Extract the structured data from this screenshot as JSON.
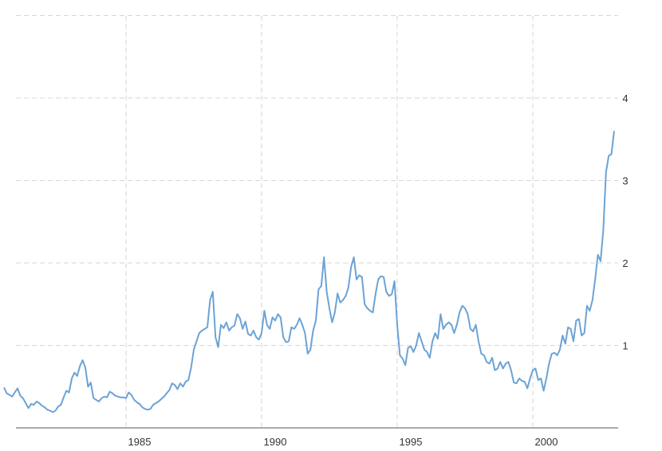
{
  "chart_data": {
    "type": "line",
    "x_label": "",
    "y_label": "",
    "xlim": [
      1980.5,
      2003.0
    ],
    "ylim": [
      0,
      5
    ],
    "x_ticks": [
      1985,
      1990,
      1995,
      2000
    ],
    "y_ticks": [
      1,
      2,
      3,
      4
    ],
    "grid": true,
    "color": "#6ca3d5",
    "series": [
      {
        "values": [
          [
            1980.5,
            0.49
          ],
          [
            1980.6,
            0.42
          ],
          [
            1980.8,
            0.38
          ],
          [
            1980.9,
            0.43
          ],
          [
            1981.0,
            0.48
          ],
          [
            1981.1,
            0.39
          ],
          [
            1981.2,
            0.36
          ],
          [
            1981.3,
            0.3
          ],
          [
            1981.4,
            0.24
          ],
          [
            1981.5,
            0.29
          ],
          [
            1981.6,
            0.28
          ],
          [
            1981.7,
            0.32
          ],
          [
            1981.8,
            0.3
          ],
          [
            1981.9,
            0.27
          ],
          [
            1982.0,
            0.25
          ],
          [
            1982.1,
            0.22
          ],
          [
            1982.2,
            0.21
          ],
          [
            1982.3,
            0.19
          ],
          [
            1982.4,
            0.21
          ],
          [
            1982.5,
            0.26
          ],
          [
            1982.6,
            0.28
          ],
          [
            1982.7,
            0.37
          ],
          [
            1982.8,
            0.45
          ],
          [
            1982.9,
            0.43
          ],
          [
            1983.0,
            0.6
          ],
          [
            1983.1,
            0.67
          ],
          [
            1983.2,
            0.63
          ],
          [
            1983.3,
            0.75
          ],
          [
            1983.4,
            0.82
          ],
          [
            1983.5,
            0.73
          ],
          [
            1983.6,
            0.5
          ],
          [
            1983.7,
            0.55
          ],
          [
            1983.8,
            0.36
          ],
          [
            1983.9,
            0.34
          ],
          [
            1984.0,
            0.32
          ],
          [
            1984.1,
            0.36
          ],
          [
            1984.2,
            0.38
          ],
          [
            1984.3,
            0.37
          ],
          [
            1984.4,
            0.44
          ],
          [
            1984.5,
            0.42
          ],
          [
            1984.6,
            0.39
          ],
          [
            1984.7,
            0.38
          ],
          [
            1984.8,
            0.37
          ],
          [
            1984.9,
            0.37
          ],
          [
            1985.0,
            0.36
          ],
          [
            1985.1,
            0.43
          ],
          [
            1985.2,
            0.4
          ],
          [
            1985.3,
            0.34
          ],
          [
            1985.4,
            0.31
          ],
          [
            1985.5,
            0.29
          ],
          [
            1985.6,
            0.25
          ],
          [
            1985.7,
            0.23
          ],
          [
            1985.8,
            0.22
          ],
          [
            1985.9,
            0.23
          ],
          [
            1986.0,
            0.28
          ],
          [
            1986.2,
            0.32
          ],
          [
            1986.3,
            0.35
          ],
          [
            1986.4,
            0.38
          ],
          [
            1986.5,
            0.42
          ],
          [
            1986.6,
            0.46
          ],
          [
            1986.7,
            0.54
          ],
          [
            1986.8,
            0.52
          ],
          [
            1986.9,
            0.47
          ],
          [
            1987.0,
            0.54
          ],
          [
            1987.1,
            0.5
          ],
          [
            1987.2,
            0.56
          ],
          [
            1987.3,
            0.58
          ],
          [
            1987.4,
            0.73
          ],
          [
            1987.5,
            0.95
          ],
          [
            1987.6,
            1.05
          ],
          [
            1987.7,
            1.15
          ],
          [
            1987.8,
            1.18
          ],
          [
            1987.9,
            1.2
          ],
          [
            1988.0,
            1.22
          ],
          [
            1988.1,
            1.55
          ],
          [
            1988.2,
            1.65
          ],
          [
            1988.3,
            1.1
          ],
          [
            1988.4,
            0.98
          ],
          [
            1988.5,
            1.25
          ],
          [
            1988.6,
            1.21
          ],
          [
            1988.7,
            1.28
          ],
          [
            1988.8,
            1.18
          ],
          [
            1988.9,
            1.22
          ],
          [
            1989.0,
            1.24
          ],
          [
            1989.1,
            1.38
          ],
          [
            1989.2,
            1.33
          ],
          [
            1989.3,
            1.2
          ],
          [
            1989.4,
            1.29
          ],
          [
            1989.5,
            1.14
          ],
          [
            1989.6,
            1.12
          ],
          [
            1989.7,
            1.18
          ],
          [
            1989.8,
            1.1
          ],
          [
            1989.9,
            1.07
          ],
          [
            1990.0,
            1.15
          ],
          [
            1990.1,
            1.42
          ],
          [
            1990.2,
            1.25
          ],
          [
            1990.3,
            1.2
          ],
          [
            1990.4,
            1.34
          ],
          [
            1990.5,
            1.3
          ],
          [
            1990.6,
            1.38
          ],
          [
            1990.7,
            1.34
          ],
          [
            1990.8,
            1.1
          ],
          [
            1990.9,
            1.04
          ],
          [
            1991.0,
            1.05
          ],
          [
            1991.1,
            1.22
          ],
          [
            1991.2,
            1.2
          ],
          [
            1991.3,
            1.25
          ],
          [
            1991.4,
            1.33
          ],
          [
            1991.5,
            1.25
          ],
          [
            1991.6,
            1.15
          ],
          [
            1991.7,
            0.9
          ],
          [
            1991.8,
            0.95
          ],
          [
            1991.9,
            1.18
          ],
          [
            1992.0,
            1.3
          ],
          [
            1992.1,
            1.68
          ],
          [
            1992.2,
            1.72
          ],
          [
            1992.3,
            2.07
          ],
          [
            1992.4,
            1.65
          ],
          [
            1992.5,
            1.45
          ],
          [
            1992.6,
            1.28
          ],
          [
            1992.7,
            1.4
          ],
          [
            1992.8,
            1.63
          ],
          [
            1992.9,
            1.52
          ],
          [
            1993.0,
            1.55
          ],
          [
            1993.1,
            1.6
          ],
          [
            1993.2,
            1.7
          ],
          [
            1993.3,
            1.95
          ],
          [
            1993.4,
            2.07
          ],
          [
            1993.5,
            1.8
          ],
          [
            1993.6,
            1.85
          ],
          [
            1993.7,
            1.83
          ],
          [
            1993.8,
            1.5
          ],
          [
            1993.9,
            1.45
          ],
          [
            1994.0,
            1.42
          ],
          [
            1994.1,
            1.4
          ],
          [
            1994.2,
            1.62
          ],
          [
            1994.3,
            1.8
          ],
          [
            1994.4,
            1.84
          ],
          [
            1994.5,
            1.83
          ],
          [
            1994.6,
            1.65
          ],
          [
            1994.7,
            1.6
          ],
          [
            1994.8,
            1.62
          ],
          [
            1994.9,
            1.78
          ],
          [
            1995.0,
            1.25
          ],
          [
            1995.1,
            0.88
          ],
          [
            1995.2,
            0.84
          ],
          [
            1995.3,
            0.76
          ],
          [
            1995.4,
            0.97
          ],
          [
            1995.5,
            0.99
          ],
          [
            1995.6,
            0.92
          ],
          [
            1995.7,
            1.0
          ],
          [
            1995.8,
            1.15
          ],
          [
            1995.9,
            1.05
          ],
          [
            1996.0,
            0.95
          ],
          [
            1996.1,
            0.92
          ],
          [
            1996.2,
            0.85
          ],
          [
            1996.3,
            1.05
          ],
          [
            1996.4,
            1.15
          ],
          [
            1996.5,
            1.08
          ],
          [
            1996.6,
            1.38
          ],
          [
            1996.7,
            1.2
          ],
          [
            1996.8,
            1.25
          ],
          [
            1996.9,
            1.28
          ],
          [
            1997.0,
            1.25
          ],
          [
            1997.1,
            1.15
          ],
          [
            1997.2,
            1.25
          ],
          [
            1997.3,
            1.4
          ],
          [
            1997.4,
            1.48
          ],
          [
            1997.5,
            1.45
          ],
          [
            1997.6,
            1.38
          ],
          [
            1997.7,
            1.2
          ],
          [
            1997.8,
            1.17
          ],
          [
            1997.9,
            1.25
          ],
          [
            1998.0,
            1.05
          ],
          [
            1998.1,
            0.9
          ],
          [
            1998.2,
            0.88
          ],
          [
            1998.3,
            0.8
          ],
          [
            1998.4,
            0.78
          ],
          [
            1998.5,
            0.85
          ],
          [
            1998.6,
            0.7
          ],
          [
            1998.7,
            0.72
          ],
          [
            1998.8,
            0.8
          ],
          [
            1998.9,
            0.72
          ],
          [
            1999.0,
            0.78
          ],
          [
            1999.1,
            0.8
          ],
          [
            1999.2,
            0.7
          ],
          [
            1999.3,
            0.55
          ],
          [
            1999.4,
            0.54
          ],
          [
            1999.5,
            0.6
          ],
          [
            1999.6,
            0.57
          ],
          [
            1999.7,
            0.56
          ],
          [
            1999.8,
            0.48
          ],
          [
            1999.9,
            0.6
          ],
          [
            2000.0,
            0.7
          ],
          [
            2000.1,
            0.72
          ],
          [
            2000.2,
            0.58
          ],
          [
            2000.3,
            0.6
          ],
          [
            2000.4,
            0.45
          ],
          [
            2000.5,
            0.6
          ],
          [
            2000.6,
            0.78
          ],
          [
            2000.7,
            0.9
          ],
          [
            2000.8,
            0.91
          ],
          [
            2000.9,
            0.88
          ],
          [
            2001.0,
            0.95
          ],
          [
            2001.1,
            1.12
          ],
          [
            2001.2,
            1.02
          ],
          [
            2001.3,
            1.22
          ],
          [
            2001.4,
            1.2
          ],
          [
            2001.5,
            1.05
          ],
          [
            2001.6,
            1.3
          ],
          [
            2001.7,
            1.32
          ],
          [
            2001.8,
            1.12
          ],
          [
            2001.9,
            1.15
          ],
          [
            2002.0,
            1.48
          ],
          [
            2002.1,
            1.42
          ],
          [
            2002.2,
            1.55
          ],
          [
            2002.3,
            1.8
          ],
          [
            2002.4,
            2.1
          ],
          [
            2002.5,
            2.02
          ],
          [
            2002.6,
            2.4
          ],
          [
            2002.7,
            3.1
          ],
          [
            2002.8,
            3.3
          ],
          [
            2002.9,
            3.32
          ],
          [
            2003.0,
            3.6
          ]
        ]
      }
    ]
  }
}
